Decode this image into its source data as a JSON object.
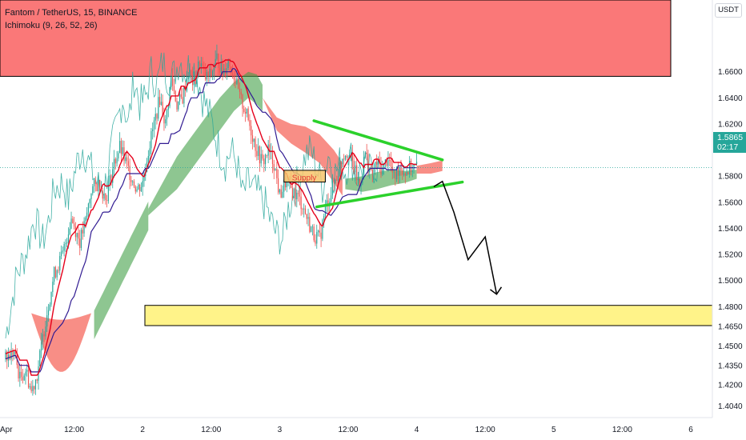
{
  "legend": {
    "symbol": "Fantom / TetherUS, 15, BINANCE",
    "indicator": "Ichimoku (9, 26, 52, 26)"
  },
  "unit": "USDT",
  "price_tag": {
    "price": "1.5865",
    "countdown": "02:17"
  },
  "zone_label": "Supply",
  "colors": {
    "up": "#26a69a",
    "down": "#ef5350",
    "conversion": "#e5001b",
    "base": "#311b92",
    "lagging": "#26a69a",
    "cloud_bull": "#43a047",
    "cloud_bear": "#f44336",
    "supply_zone": "#fa7878",
    "target_zone": "#fff389",
    "triangle": "#2bd12b",
    "arrow": "#000000"
  },
  "chart_data": {
    "type": "candlestick",
    "title": "Fantom / TetherUS, 15, BINANCE",
    "ylabel": "USDT",
    "ylim": [
      1.395,
      1.715
    ],
    "y_ticks": [
      1.66,
      1.64,
      1.62,
      1.6,
      1.58,
      1.56,
      1.54,
      1.52,
      1.5,
      1.48,
      1.465,
      1.45,
      1.435,
      1.42,
      1.404
    ],
    "x_ticks": [
      "Apr",
      "12:00",
      "2",
      "12:00",
      "3",
      "12:00",
      "4",
      "12:00",
      "5",
      "12:00",
      "6"
    ],
    "x_tick_index": [
      0,
      48,
      96,
      144,
      192,
      240,
      288,
      336,
      384,
      432,
      480
    ],
    "last_price": 1.5865,
    "price_series": [
      [
        0,
        1.44
      ],
      [
        6,
        1.445
      ],
      [
        10,
        1.425
      ],
      [
        14,
        1.432
      ],
      [
        18,
        1.415
      ],
      [
        22,
        1.428
      ],
      [
        28,
        1.47
      ],
      [
        34,
        1.505
      ],
      [
        40,
        1.52
      ],
      [
        46,
        1.548
      ],
      [
        52,
        1.53
      ],
      [
        56,
        1.545
      ],
      [
        60,
        1.57
      ],
      [
        66,
        1.575
      ],
      [
        70,
        1.562
      ],
      [
        76,
        1.59
      ],
      [
        80,
        1.602
      ],
      [
        86,
        1.585
      ],
      [
        92,
        1.57
      ],
      [
        96,
        1.575
      ],
      [
        100,
        1.6
      ],
      [
        104,
        1.62
      ],
      [
        108,
        1.64
      ],
      [
        112,
        1.62
      ],
      [
        116,
        1.655
      ],
      [
        120,
        1.635
      ],
      [
        124,
        1.64
      ],
      [
        128,
        1.66
      ],
      [
        132,
        1.65
      ],
      [
        136,
        1.668
      ],
      [
        140,
        1.655
      ],
      [
        144,
        1.658
      ],
      [
        148,
        1.67
      ],
      [
        152,
        1.66
      ],
      [
        156,
        1.668
      ],
      [
        160,
        1.658
      ],
      [
        164,
        1.64
      ],
      [
        168,
        1.63
      ],
      [
        172,
        1.615
      ],
      [
        176,
        1.6
      ],
      [
        180,
        1.59
      ],
      [
        184,
        1.6
      ],
      [
        188,
        1.59
      ],
      [
        192,
        1.565
      ],
      [
        196,
        1.575
      ],
      [
        200,
        1.57
      ],
      [
        204,
        1.565
      ],
      [
        208,
        1.558
      ],
      [
        212,
        1.545
      ],
      [
        216,
        1.535
      ],
      [
        220,
        1.532
      ],
      [
        224,
        1.555
      ],
      [
        228,
        1.568
      ],
      [
        232,
        1.58
      ],
      [
        236,
        1.596
      ],
      [
        240,
        1.6
      ],
      [
        244,
        1.586
      ],
      [
        248,
        1.572
      ],
      [
        252,
        1.598
      ],
      [
        256,
        1.58
      ],
      [
        260,
        1.59
      ],
      [
        264,
        1.585
      ],
      [
        268,
        1.595
      ],
      [
        272,
        1.578
      ],
      [
        276,
        1.588
      ],
      [
        280,
        1.583
      ],
      [
        284,
        1.587
      ],
      [
        288,
        1.5865
      ]
    ],
    "cloud": {
      "bull": [
        [
          100,
          1.555,
          1.55
        ],
        [
          110,
          1.575,
          1.56
        ],
        [
          120,
          1.595,
          1.57
        ],
        [
          130,
          1.61,
          1.585
        ],
        [
          140,
          1.625,
          1.6
        ],
        [
          150,
          1.64,
          1.615
        ],
        [
          160,
          1.652,
          1.63
        ],
        [
          170,
          1.66,
          1.64
        ],
        [
          176,
          1.658,
          1.635
        ],
        [
          180,
          1.65,
          1.63
        ]
      ],
      "bear": [
        [
          180,
          1.64,
          1.64
        ],
        [
          190,
          1.625,
          1.615
        ],
        [
          200,
          1.62,
          1.605
        ],
        [
          210,
          1.618,
          1.598
        ],
        [
          220,
          1.612,
          1.59
        ],
        [
          230,
          1.6,
          1.575
        ],
        [
          236,
          1.59,
          1.565
        ]
      ],
      "bull2": [
        [
          238,
          1.578,
          1.57
        ],
        [
          250,
          1.58,
          1.568
        ],
        [
          260,
          1.583,
          1.57
        ],
        [
          270,
          1.585,
          1.573
        ],
        [
          280,
          1.584,
          1.575
        ],
        [
          288,
          1.585,
          1.578
        ]
      ],
      "bear2": [
        [
          288,
          1.588,
          1.582
        ],
        [
          298,
          1.59,
          1.582
        ],
        [
          306,
          1.592,
          1.584
        ]
      ]
    },
    "zones": {
      "supply_top": [
        1.715,
        1.6565
      ],
      "target": [
        1.481,
        1.4655
      ],
      "supply_box": [
        1.5845,
        1.5755
      ]
    },
    "triangle": {
      "upper": [
        [
          216,
          1.6225
        ],
        [
          306,
          1.5925
        ]
      ],
      "lower": [
        [
          218,
          1.5565
        ],
        [
          320,
          1.5755
        ]
      ]
    },
    "projection": [
      [
        300,
        1.572
      ],
      [
        306,
        1.576
      ],
      [
        314,
        1.5525
      ],
      [
        324,
        1.516
      ],
      [
        336,
        1.5335
      ],
      [
        344,
        1.4895
      ]
    ]
  }
}
